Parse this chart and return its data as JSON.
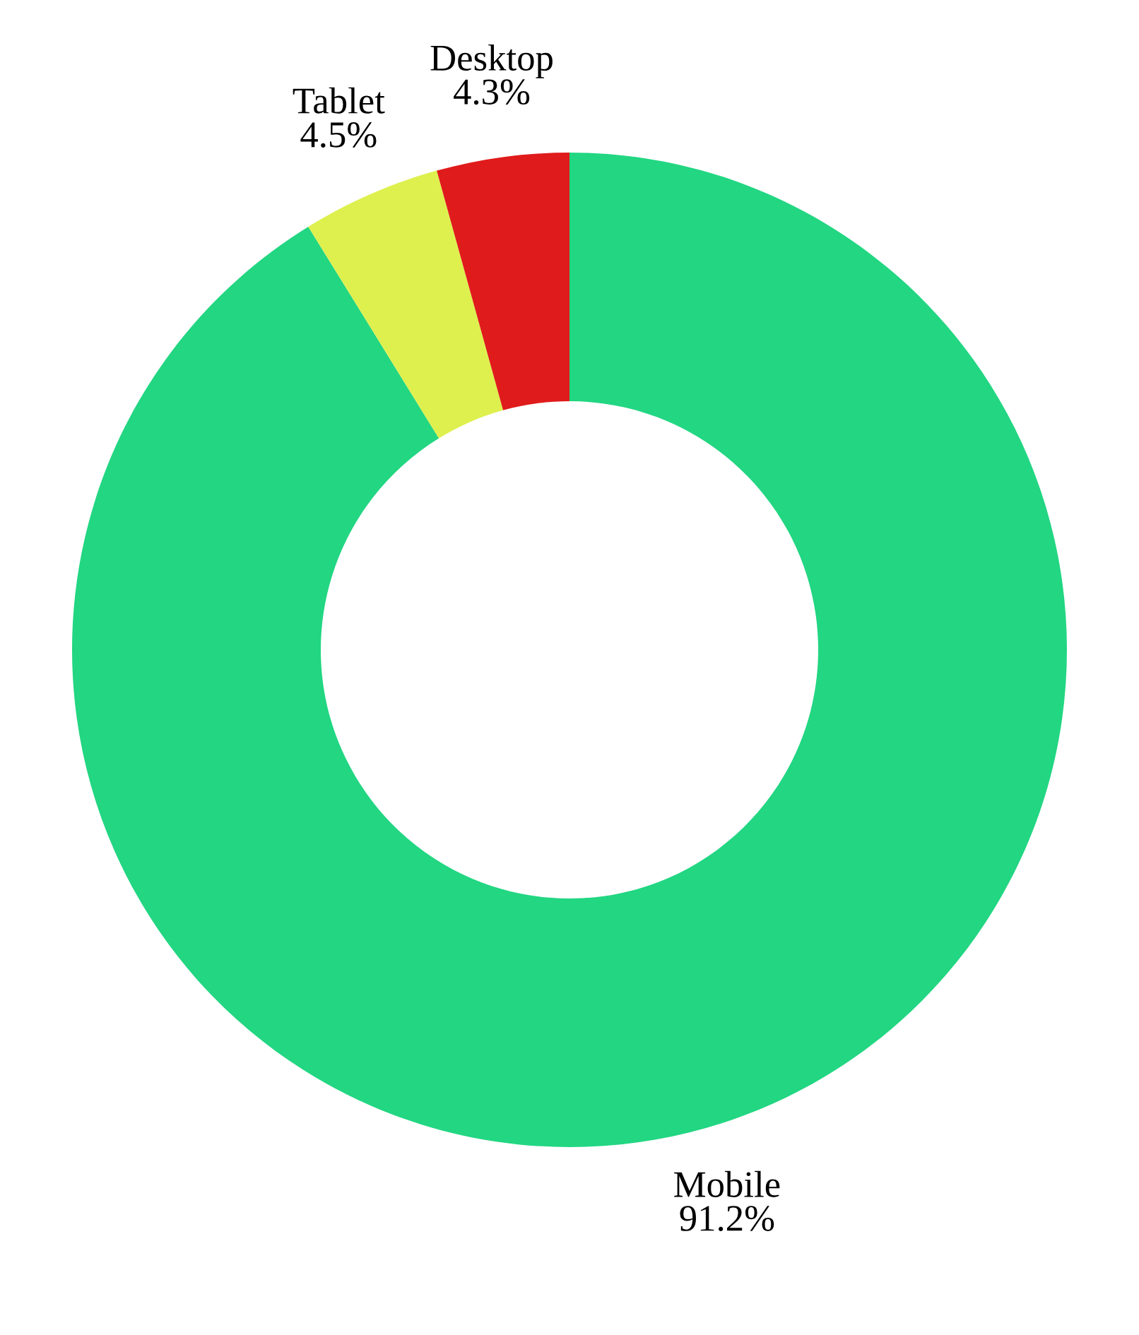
{
  "chart_data": {
    "type": "donut",
    "categories": [
      "Mobile",
      "Tablet",
      "Desktop"
    ],
    "values": [
      91.2,
      4.5,
      4.3
    ],
    "value_labels": [
      "91.2%",
      "4.5%",
      "4.3%"
    ],
    "colors": [
      "#22d682",
      "#def04e",
      "#e01b1b"
    ],
    "legend": false
  }
}
